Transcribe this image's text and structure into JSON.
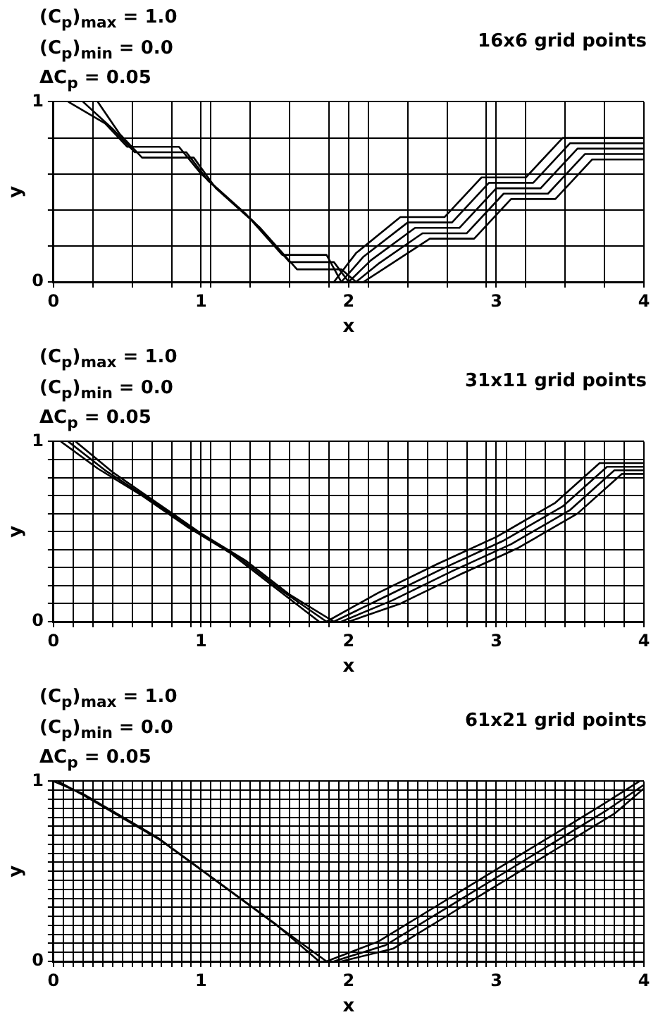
{
  "chart_data": [
    {
      "type": "line",
      "title": "16x6 grid points",
      "annotations": [
        "(C$_{p}$)$_{max}$ = 1.0",
        "(C$_{p}$)$_{min}$ = 0.0",
        "ΔC$_{p}$ = 0.05"
      ],
      "xlabel": "x",
      "ylabel": "y",
      "grid": true,
      "legend": false,
      "marker": "none",
      "line_style": "solid",
      "xlim": [
        0,
        4
      ],
      "ylim": [
        0,
        1
      ],
      "xticks": [
        {
          "value": 0,
          "label": "0"
        },
        {
          "value": 0.267,
          "label": null
        },
        {
          "value": 0.533,
          "label": null
        },
        {
          "value": 0.8,
          "label": null
        },
        1,
        {
          "value": 1.067,
          "label": null
        },
        {
          "value": 1.333,
          "label": null
        },
        {
          "value": 1.6,
          "label": null
        },
        {
          "value": 1.867,
          "label": null
        },
        2,
        {
          "value": 2.133,
          "label": null
        },
        {
          "value": 2.4,
          "label": null
        },
        {
          "value": 2.667,
          "label": null
        },
        {
          "value": 2.933,
          "label": null
        },
        3,
        {
          "value": 3.2,
          "label": null
        },
        {
          "value": 3.467,
          "label": null
        },
        {
          "value": 3.733,
          "label": null
        },
        4
      ],
      "yticks": [
        {
          "value": 0,
          "label": "0"
        },
        {
          "value": 0.2,
          "label": null
        },
        {
          "value": 0.4,
          "label": null
        },
        {
          "value": 0.6,
          "label": null
        },
        {
          "value": 0.8,
          "label": null
        },
        {
          "value": 1,
          "label": "1"
        }
      ],
      "series": [
        {
          "color": "#000000",
          "x": [
            0.1,
            0.35,
            0.5,
            0.85,
            1.0,
            1.3,
            1.55,
            1.85,
            1.95
          ],
          "values": [
            1,
            0.88,
            0.75,
            0.75,
            0.6,
            0.38,
            0.15,
            0.15,
            0
          ]
        },
        {
          "color": "#000000",
          "x": [
            0.2,
            0.4,
            0.55,
            0.9,
            1.05,
            1.35,
            1.6,
            1.9,
            2.0
          ],
          "values": [
            1,
            0.85,
            0.72,
            0.72,
            0.56,
            0.34,
            0.11,
            0.11,
            0
          ]
        },
        {
          "color": "#000000",
          "x": [
            0.3,
            0.45,
            0.6,
            0.95,
            1.1,
            1.4,
            1.65,
            1.95,
            2.05
          ],
          "values": [
            1,
            0.82,
            0.69,
            0.69,
            0.52,
            0.3,
            0.07,
            0.07,
            0
          ]
        },
        {
          "color": "#000000",
          "x": [
            1.9,
            2.05,
            2.35,
            2.65,
            2.9,
            3.2,
            3.45,
            4
          ],
          "values": [
            0,
            0.16,
            0.36,
            0.36,
            0.58,
            0.58,
            0.8,
            0.8
          ]
        },
        {
          "color": "#000000",
          "x": [
            1.95,
            2.1,
            2.4,
            2.7,
            2.95,
            3.25,
            3.5,
            4
          ],
          "values": [
            0,
            0.14,
            0.33,
            0.33,
            0.55,
            0.55,
            0.77,
            0.77
          ]
        },
        {
          "color": "#000000",
          "x": [
            2.0,
            2.15,
            2.45,
            2.75,
            3.0,
            3.3,
            3.55,
            4
          ],
          "values": [
            0,
            0.12,
            0.3,
            0.3,
            0.52,
            0.52,
            0.74,
            0.74
          ]
        },
        {
          "color": "#000000",
          "x": [
            2.05,
            2.2,
            2.5,
            2.8,
            3.05,
            3.35,
            3.6,
            4
          ],
          "values": [
            0,
            0.1,
            0.27,
            0.27,
            0.49,
            0.49,
            0.71,
            0.71
          ]
        },
        {
          "color": "#000000",
          "x": [
            2.1,
            2.25,
            2.55,
            2.85,
            3.1,
            3.4,
            3.65,
            4
          ],
          "values": [
            0,
            0.08,
            0.24,
            0.24,
            0.46,
            0.46,
            0.68,
            0.68
          ]
        }
      ]
    },
    {
      "type": "line",
      "title": "31x11 grid points",
      "annotations": [
        "(C$_{p}$)$_{max}$ = 1.0",
        "(C$_{p}$)$_{min}$ = 0.0",
        "ΔC$_{p}$ = 0.05"
      ],
      "xlabel": "x",
      "ylabel": "y",
      "grid": true,
      "legend": false,
      "marker": "none",
      "line_style": "solid",
      "xlim": [
        0,
        4
      ],
      "ylim": [
        0,
        1
      ],
      "xticks": [
        {
          "value": 0,
          "label": "0"
        },
        {
          "value": 0.133,
          "label": null
        },
        {
          "value": 0.267,
          "label": null
        },
        {
          "value": 0.4,
          "label": null
        },
        {
          "value": 0.533,
          "label": null
        },
        {
          "value": 0.667,
          "label": null
        },
        {
          "value": 0.8,
          "label": null
        },
        {
          "value": 0.933,
          "label": null
        },
        1,
        {
          "value": 1.067,
          "label": null
        },
        {
          "value": 1.2,
          "label": null
        },
        {
          "value": 1.333,
          "label": null
        },
        {
          "value": 1.467,
          "label": null
        },
        {
          "value": 1.6,
          "label": null
        },
        {
          "value": 1.733,
          "label": null
        },
        {
          "value": 1.867,
          "label": null
        },
        2,
        {
          "value": 2.133,
          "label": null
        },
        {
          "value": 2.267,
          "label": null
        },
        {
          "value": 2.4,
          "label": null
        },
        {
          "value": 2.533,
          "label": null
        },
        {
          "value": 2.667,
          "label": null
        },
        {
          "value": 2.8,
          "label": null
        },
        {
          "value": 2.933,
          "label": null
        },
        3,
        {
          "value": 3.067,
          "label": null
        },
        {
          "value": 3.2,
          "label": null
        },
        {
          "value": 3.333,
          "label": null
        },
        {
          "value": 3.467,
          "label": null
        },
        {
          "value": 3.6,
          "label": null
        },
        {
          "value": 3.733,
          "label": null
        },
        {
          "value": 3.867,
          "label": null
        },
        4
      ],
      "yticks": [
        {
          "value": 0,
          "label": "0"
        },
        {
          "value": 0.1,
          "label": null
        },
        {
          "value": 0.2,
          "label": null
        },
        {
          "value": 0.3,
          "label": null
        },
        {
          "value": 0.4,
          "label": null
        },
        {
          "value": 0.5,
          "label": null
        },
        {
          "value": 0.6,
          "label": null
        },
        {
          "value": 0.7,
          "label": null
        },
        {
          "value": 0.8,
          "label": null
        },
        {
          "value": 0.9,
          "label": null
        },
        {
          "value": 1,
          "label": "1"
        }
      ],
      "series": [
        {
          "color": "#000000",
          "x": [
            0.05,
            0.3,
            0.6,
            0.9,
            1.2,
            1.5,
            1.8
          ],
          "values": [
            1,
            0.85,
            0.7,
            0.53,
            0.38,
            0.19,
            0
          ]
        },
        {
          "color": "#000000",
          "x": [
            0.1,
            0.35,
            0.65,
            0.95,
            1.25,
            1.55,
            1.85
          ],
          "values": [
            1,
            0.84,
            0.68,
            0.51,
            0.36,
            0.17,
            0
          ]
        },
        {
          "color": "#000000",
          "x": [
            0.15,
            0.4,
            0.7,
            1.0,
            1.3,
            1.6,
            1.9
          ],
          "values": [
            1,
            0.83,
            0.66,
            0.49,
            0.34,
            0.15,
            0
          ]
        },
        {
          "color": "#000000",
          "x": [
            1.85,
            2.2,
            2.6,
            3.0,
            3.4,
            3.7,
            4
          ],
          "values": [
            0,
            0.16,
            0.32,
            0.47,
            0.66,
            0.88,
            0.88
          ]
        },
        {
          "color": "#000000",
          "x": [
            1.9,
            2.25,
            2.65,
            3.05,
            3.45,
            3.75,
            4
          ],
          "values": [
            0,
            0.14,
            0.3,
            0.45,
            0.64,
            0.86,
            0.86
          ]
        },
        {
          "color": "#000000",
          "x": [
            1.95,
            2.3,
            2.7,
            3.1,
            3.5,
            3.8,
            4
          ],
          "values": [
            0,
            0.12,
            0.28,
            0.43,
            0.62,
            0.84,
            0.84
          ]
        },
        {
          "color": "#000000",
          "x": [
            2.0,
            2.35,
            2.75,
            3.15,
            3.55,
            3.85,
            4
          ],
          "values": [
            0,
            0.1,
            0.26,
            0.41,
            0.6,
            0.82,
            0.82
          ]
        }
      ]
    },
    {
      "type": "line",
      "title": "61x21 grid points",
      "annotations": [
        "(C$_{p}$)$_{max}$ = 1.0",
        "(C$_{p}$)$_{min}$ = 0.0",
        "ΔC$_{p}$ = 0.05"
      ],
      "xlabel": "x",
      "ylabel": "y",
      "grid": true,
      "legend": false,
      "marker": "none",
      "line_style": "solid",
      "xlim": [
        0,
        4
      ],
      "ylim": [
        0,
        1
      ],
      "xticks": [
        {
          "value": 0,
          "label": "0"
        },
        {
          "value": 0.067,
          "label": null
        },
        {
          "value": 0.133,
          "label": null
        },
        {
          "value": 0.2,
          "label": null
        },
        {
          "value": 0.267,
          "label": null
        },
        {
          "value": 0.333,
          "label": null
        },
        {
          "value": 0.4,
          "label": null
        },
        {
          "value": 0.467,
          "label": null
        },
        {
          "value": 0.533,
          "label": null
        },
        {
          "value": 0.6,
          "label": null
        },
        {
          "value": 0.667,
          "label": null
        },
        {
          "value": 0.733,
          "label": null
        },
        {
          "value": 0.8,
          "label": null
        },
        {
          "value": 0.867,
          "label": null
        },
        {
          "value": 0.933,
          "label": null
        },
        1,
        {
          "value": 1.067,
          "label": null
        },
        {
          "value": 1.133,
          "label": null
        },
        {
          "value": 1.2,
          "label": null
        },
        {
          "value": 1.267,
          "label": null
        },
        {
          "value": 1.333,
          "label": null
        },
        {
          "value": 1.4,
          "label": null
        },
        {
          "value": 1.467,
          "label": null
        },
        {
          "value": 1.533,
          "label": null
        },
        {
          "value": 1.6,
          "label": null
        },
        {
          "value": 1.667,
          "label": null
        },
        {
          "value": 1.733,
          "label": null
        },
        {
          "value": 1.8,
          "label": null
        },
        {
          "value": 1.867,
          "label": null
        },
        {
          "value": 1.933,
          "label": null
        },
        2,
        {
          "value": 2.067,
          "label": null
        },
        {
          "value": 2.133,
          "label": null
        },
        {
          "value": 2.2,
          "label": null
        },
        {
          "value": 2.267,
          "label": null
        },
        {
          "value": 2.333,
          "label": null
        },
        {
          "value": 2.4,
          "label": null
        },
        {
          "value": 2.467,
          "label": null
        },
        {
          "value": 2.533,
          "label": null
        },
        {
          "value": 2.6,
          "label": null
        },
        {
          "value": 2.667,
          "label": null
        },
        {
          "value": 2.733,
          "label": null
        },
        {
          "value": 2.8,
          "label": null
        },
        {
          "value": 2.867,
          "label": null
        },
        {
          "value": 2.933,
          "label": null
        },
        3,
        {
          "value": 3.067,
          "label": null
        },
        {
          "value": 3.133,
          "label": null
        },
        {
          "value": 3.2,
          "label": null
        },
        {
          "value": 3.267,
          "label": null
        },
        {
          "value": 3.333,
          "label": null
        },
        {
          "value": 3.4,
          "label": null
        },
        {
          "value": 3.467,
          "label": null
        },
        {
          "value": 3.533,
          "label": null
        },
        {
          "value": 3.6,
          "label": null
        },
        {
          "value": 3.667,
          "label": null
        },
        {
          "value": 3.733,
          "label": null
        },
        {
          "value": 3.8,
          "label": null
        },
        {
          "value": 3.867,
          "label": null
        },
        {
          "value": 3.933,
          "label": null
        },
        4
      ],
      "yticks": [
        {
          "value": 0,
          "label": "0"
        },
        {
          "value": 0.05,
          "label": null
        },
        {
          "value": 0.1,
          "label": null
        },
        {
          "value": 0.15,
          "label": null
        },
        {
          "value": 0.2,
          "label": null
        },
        {
          "value": 0.25,
          "label": null
        },
        {
          "value": 0.3,
          "label": null
        },
        {
          "value": 0.35,
          "label": null
        },
        {
          "value": 0.4,
          "label": null
        },
        {
          "value": 0.45,
          "label": null
        },
        {
          "value": 0.5,
          "label": null
        },
        {
          "value": 0.55,
          "label": null
        },
        {
          "value": 0.6,
          "label": null
        },
        {
          "value": 0.65,
          "label": null
        },
        {
          "value": 0.7,
          "label": null
        },
        {
          "value": 0.75,
          "label": null
        },
        {
          "value": 0.8,
          "label": null
        },
        {
          "value": 0.85,
          "label": null
        },
        {
          "value": 0.9,
          "label": null
        },
        {
          "value": 0.95,
          "label": null
        },
        {
          "value": 1,
          "label": "1"
        }
      ],
      "series": [
        {
          "color": "#000000",
          "x": [
            0,
            0.2,
            0.45,
            0.7,
            1.0,
            1.2,
            1.5,
            1.8
          ],
          "values": [
            1,
            0.93,
            0.81,
            0.69,
            0.51,
            0.39,
            0.21,
            0
          ]
        },
        {
          "color": "#000000",
          "x": [
            0.03,
            0.23,
            0.48,
            0.73,
            1.03,
            1.23,
            1.53,
            1.85
          ],
          "values": [
            1,
            0.91,
            0.79,
            0.67,
            0.49,
            0.37,
            0.19,
            0
          ]
        },
        {
          "color": "#000000",
          "x": [
            1.85,
            2.2,
            2.6,
            3.0,
            3.4,
            3.7,
            3.97
          ],
          "values": [
            0,
            0.11,
            0.31,
            0.51,
            0.71,
            0.86,
            1
          ]
        },
        {
          "color": "#000000",
          "x": [
            1.9,
            2.25,
            2.65,
            3.05,
            3.45,
            3.75,
            4
          ],
          "values": [
            0,
            0.09,
            0.29,
            0.49,
            0.69,
            0.84,
            0.98
          ]
        },
        {
          "color": "#000000",
          "x": [
            1.95,
            2.3,
            2.7,
            3.1,
            3.5,
            3.8,
            4
          ],
          "values": [
            0,
            0.07,
            0.27,
            0.47,
            0.67,
            0.82,
            0.96
          ]
        }
      ]
    }
  ]
}
